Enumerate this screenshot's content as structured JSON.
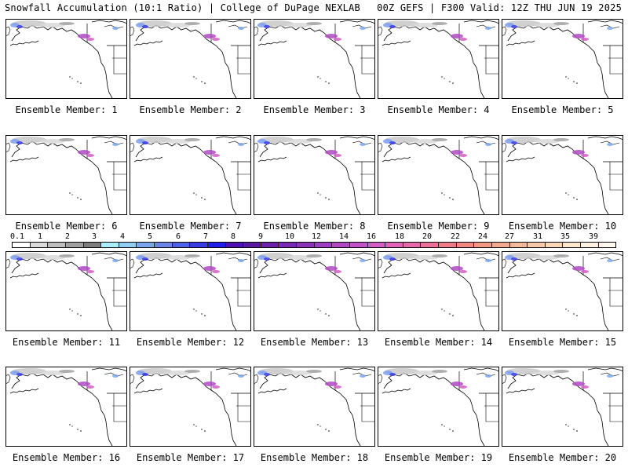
{
  "header": {
    "left": "Snowfall Accumulation (10:1 Ratio) | College of DuPage NEXLAB",
    "right": "00Z GEFS | F300 Valid: 12Z THU JUN 19 2025"
  },
  "panel_label_prefix": "Ensemble Member: ",
  "members": [
    1,
    2,
    3,
    4,
    5,
    6,
    7,
    8,
    9,
    10,
    11,
    12,
    13,
    14,
    15,
    16,
    17,
    18,
    19,
    20
  ],
  "colorbar": {
    "ticks": [
      "0.1",
      "1",
      "2",
      "3",
      "4",
      "5",
      "6",
      "7",
      "8",
      "9",
      "10",
      "12",
      "14",
      "16",
      "18",
      "20",
      "22",
      "24",
      "27",
      "31",
      "35",
      "39"
    ],
    "colors": [
      "#ffffff",
      "#dcdcdc",
      "#bebebe",
      "#a0a0a0",
      "#7d7d7d",
      "#a8f0ff",
      "#8ecdf6",
      "#79a8ee",
      "#6a85e6",
      "#4f5ee3",
      "#3a3ae6",
      "#1f1fe8",
      "#4b14b0",
      "#5a1aa0",
      "#6b20a6",
      "#7a2ab0",
      "#8c34b8",
      "#9e3ec0",
      "#b048c4",
      "#c452c8",
      "#d25cc4",
      "#dc64b8",
      "#e46aa8",
      "#ea7298",
      "#ee7c88",
      "#f08a80",
      "#f29a84",
      "#f4aa8c",
      "#f6ba98",
      "#f8caa8",
      "#fad8b8",
      "#fce6cc",
      "#fef2e0",
      "#fff8ee"
    ]
  }
}
